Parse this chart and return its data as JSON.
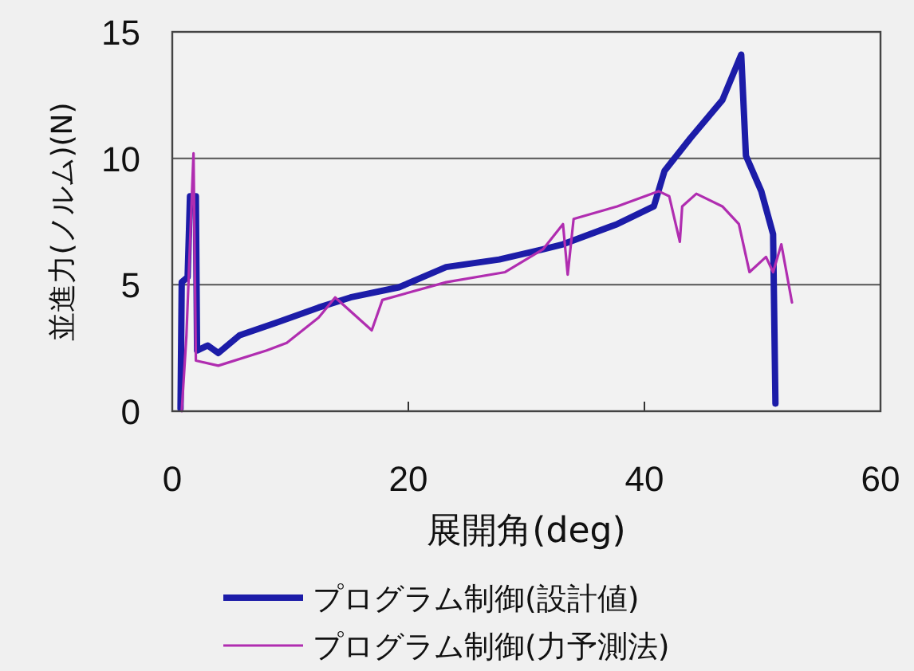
{
  "chart_data": {
    "type": "line",
    "xlabel": "展開角(deg)",
    "ylabel": "並進力(ノルム)(N)",
    "xlim": [
      0,
      60
    ],
    "ylim": [
      0,
      15
    ],
    "xticks": [
      0,
      20,
      40,
      60
    ],
    "yticks": [
      0,
      5,
      10,
      15
    ],
    "grid": "y",
    "legend": "bottom",
    "series": [
      {
        "name": "プログラム制御(設計値)",
        "color": "#1c1ca8",
        "x": [
          0.7,
          0.8,
          1.3,
          1.5,
          2.0,
          2.1,
          3.0,
          3.9,
          5.7,
          8.8,
          12.4,
          15.1,
          19.2,
          23.2,
          27.7,
          31.4,
          33.1,
          37.7,
          40.8,
          41.7,
          43.9,
          46.6,
          48.2,
          48.6,
          49.9,
          50.9,
          51.1
        ],
        "values": [
          0.1,
          5.1,
          5.3,
          8.5,
          8.5,
          2.4,
          2.6,
          2.3,
          3.0,
          3.5,
          4.1,
          4.5,
          4.9,
          5.7,
          6.0,
          6.4,
          6.6,
          7.4,
          8.1,
          9.5,
          10.8,
          12.3,
          14.1,
          10.1,
          8.7,
          7.0,
          0.3
        ]
      },
      {
        "name": "プログラム制御(力予測法)",
        "color": "#b02db0",
        "x": [
          0.8,
          1.2,
          1.8,
          2.0,
          3.9,
          8.0,
          9.7,
          12.4,
          13.8,
          16.9,
          17.8,
          23.2,
          28.2,
          31.4,
          33.1,
          33.5,
          34.0,
          37.7,
          41.2,
          42.1,
          43.0,
          43.2,
          44.4,
          46.6,
          48.0,
          48.9,
          50.3,
          50.9,
          51.6,
          52.5
        ],
        "values": [
          0,
          3.0,
          10.2,
          2.0,
          1.8,
          2.4,
          2.7,
          3.7,
          4.5,
          3.2,
          4.4,
          5.1,
          5.5,
          6.4,
          7.4,
          5.4,
          7.6,
          8.1,
          8.7,
          8.5,
          6.7,
          8.1,
          8.6,
          8.1,
          7.4,
          5.5,
          6.1,
          5.5,
          6.6,
          4.3
        ]
      }
    ]
  }
}
